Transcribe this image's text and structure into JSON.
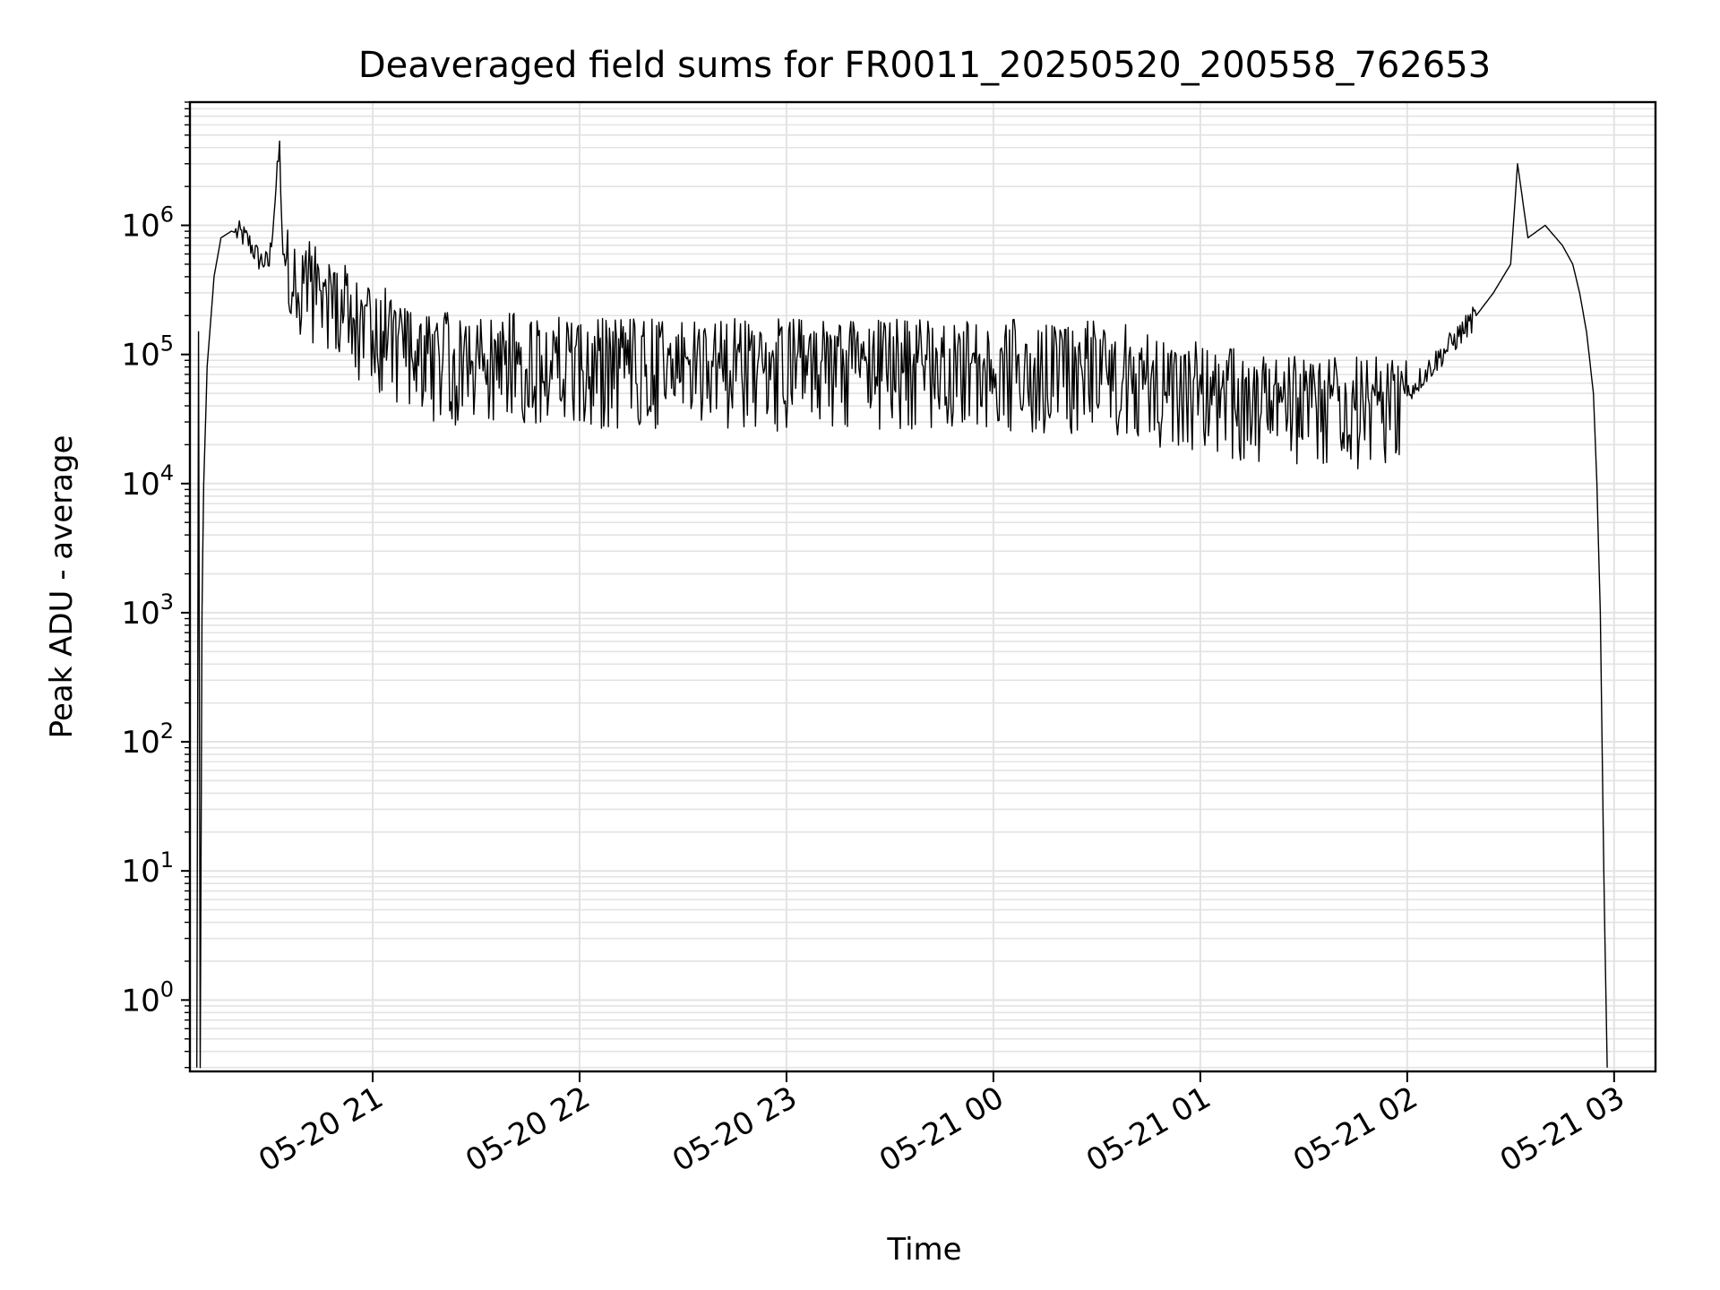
{
  "chart_data": {
    "type": "line",
    "title": "Deaveraged field sums for FR0011_20250520_200558_762653",
    "xlabel": "Time",
    "ylabel": "Peak ADU - average",
    "yscale": "log",
    "ylim": [
      0.28,
      9000000
    ],
    "xlim": [
      "05-20 20:07",
      "05-21 03:12"
    ],
    "x_ticks": [
      "05-20 21",
      "05-20 22",
      "05-20 23",
      "05-21 00",
      "05-21 01",
      "05-21 02",
      "05-21 03"
    ],
    "y_ticks": [
      {
        "base": "10",
        "exp": "0"
      },
      {
        "base": "10",
        "exp": "1"
      },
      {
        "base": "10",
        "exp": "2"
      },
      {
        "base": "10",
        "exp": "3"
      },
      {
        "base": "10",
        "exp": "4"
      },
      {
        "base": "10",
        "exp": "5"
      },
      {
        "base": "10",
        "exp": "6"
      }
    ],
    "grid": true,
    "line_color": "#000000",
    "grid_color": "#e3e3e3",
    "series": [
      {
        "x": [
          "05-20 20:09",
          "05-20 20:09:30",
          "05-20 20:10",
          "05-20 20:10:30",
          "05-20 20:11",
          "05-20 20:12",
          "05-20 20:14",
          "05-20 20:16",
          "05-20 20:19",
          "05-20 20:22",
          "05-20 20:24",
          "05-20 20:27",
          "05-20 20:30",
          "05-20 20:33",
          "05-20 20:34",
          "05-20 20:35",
          "05-20 20:38",
          "05-20 20:40",
          "05-20 20:41",
          "05-20 20:44",
          "05-20 20:50",
          "05-20 21:00",
          "05-20 21:10",
          "05-20 21:20",
          "05-20 21:30",
          "05-20 21:45",
          "05-20 22:00",
          "05-20 22:30",
          "05-20 23:00",
          "05-20 23:30",
          "05-21 00:00",
          "05-21 00:30",
          "05-21 00:45",
          "05-21 00:48",
          "05-21 01:00",
          "05-21 01:15",
          "05-21 01:30",
          "05-21 01:45",
          "05-21 01:55",
          "05-21 02:00",
          "05-21 02:10",
          "05-21 02:20",
          "05-21 02:25",
          "05-21 02:30",
          "05-21 02:32",
          "05-21 02:35",
          "05-21 02:40",
          "05-21 02:45",
          "05-21 02:48",
          "05-21 02:50",
          "05-21 02:52",
          "05-21 02:54",
          "05-21 02:55",
          "05-21 02:56",
          "05-21 02:57",
          "05-21 02:58"
        ],
        "y": [
          0.3,
          150000,
          0.3,
          1000,
          10000,
          80000,
          400000,
          800000,
          900000,
          850000,
          750000,
          550000,
          500000,
          4000000,
          500000,
          550000,
          450000,
          350000,
          400000,
          300000,
          250000,
          180000,
          120000,
          100000,
          100000,
          100000,
          95000,
          90000,
          90000,
          90000,
          90000,
          85000,
          80000,
          60000,
          60000,
          50000,
          45000,
          45000,
          45000,
          50000,
          100000,
          200000,
          300000,
          500000,
          3000000,
          800000,
          1000000,
          700000,
          500000,
          300000,
          150000,
          50000,
          10000,
          1000,
          10,
          0.3
        ]
      }
    ]
  }
}
